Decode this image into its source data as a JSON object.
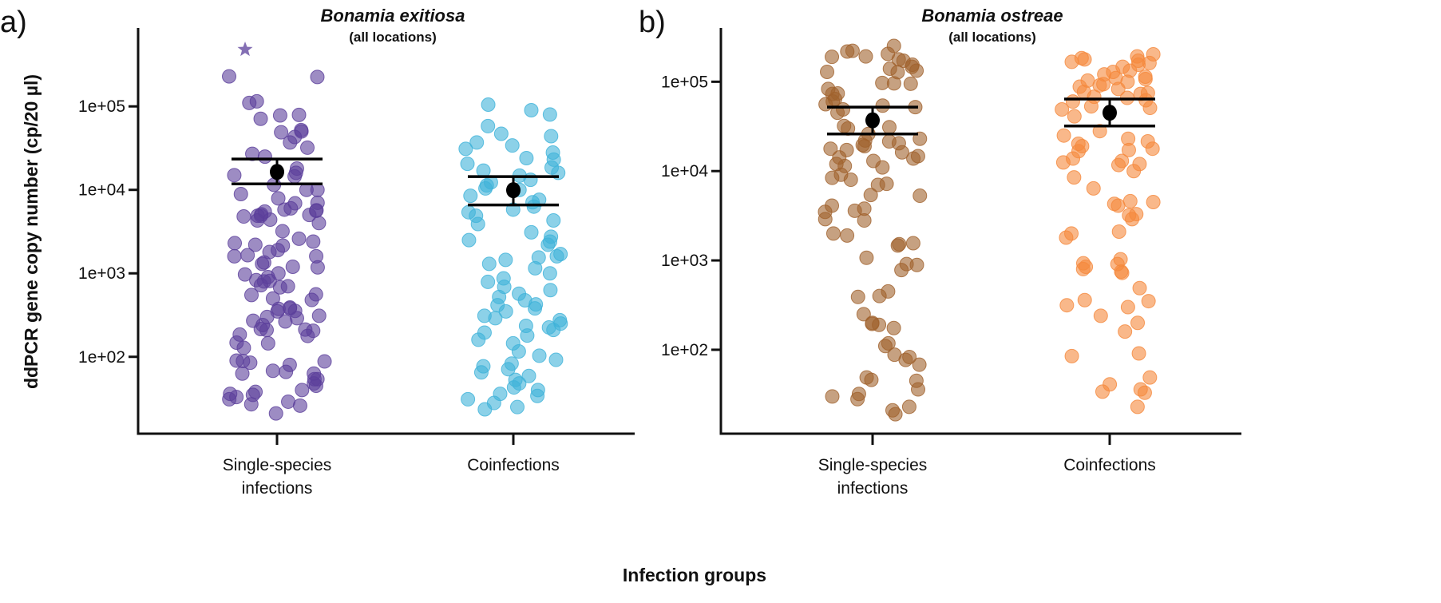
{
  "y_axis_label": "ddPCR gene copy number (cp/20 µl)",
  "x_axis_label": "Infection groups",
  "chart_data": [
    {
      "type": "scatter",
      "panel_label": "a)",
      "title": "Bonamia exitiosa",
      "subtitle": "(all locations)",
      "y_scale": "log",
      "ylim": [
        12,
        870000
      ],
      "y_ticks": [
        100,
        1000,
        10000,
        100000
      ],
      "y_tick_labels": [
        "1e+02",
        "1e+03",
        "1e+04",
        "1e+05"
      ],
      "categories": [
        "Single-species\ninfections",
        "Coinfections"
      ],
      "grid": false,
      "series": [
        {
          "category": "Single-species\ninfections",
          "color": "#5b3f9b",
          "values": [
            229000,
            225000,
            115000,
            110000,
            79000,
            78000,
            71000,
            52000,
            50000,
            49000,
            43000,
            37000,
            32000,
            27000,
            25000,
            18000,
            16000,
            15000,
            14500,
            11500,
            10000,
            10000,
            8900,
            7900,
            7000,
            6900,
            6000,
            5800,
            5700,
            5600,
            5500,
            5100,
            5000,
            4900,
            4800,
            4900,
            4400,
            4300,
            4000,
            3200,
            2600,
            2400,
            2300,
            2200,
            2150,
            1900,
            1800,
            1650,
            1600,
            1600,
            1350,
            1300,
            1200,
            1180,
            1000,
            970,
            900,
            830,
            800,
            810,
            720,
            680,
            700,
            550,
            560,
            500,
            480,
            390,
            380,
            375,
            350,
            355,
            310,
            300,
            290,
            270,
            265,
            240,
            215,
            210,
            212,
            205,
            185,
            178,
            148,
            145,
            128,
            90,
            88,
            85,
            80,
            89,
            68,
            66,
            63,
            54,
            63,
            54,
            48,
            45,
            40,
            38,
            36,
            35,
            33,
            31,
            29,
            27,
            26,
            21
          ],
          "outliers": [
            480000
          ],
          "mean": 16400,
          "ci": [
            11800,
            23400
          ]
        },
        {
          "category": "Coinfections",
          "color": "#3fb3d9",
          "values": [
            90000,
            105000,
            80000,
            58000,
            47000,
            44000,
            37000,
            34000,
            31000,
            28000,
            24000,
            23000,
            20500,
            18500,
            17000,
            16000,
            14800,
            13200,
            12300,
            11300,
            10400,
            10000,
            8500,
            7600,
            7100,
            6300,
            5800,
            5400,
            4900,
            4300,
            3900,
            3100,
            2750,
            2500,
            2400,
            2200,
            1700,
            1600,
            1550,
            1450,
            1300,
            1150,
            1000,
            870,
            790,
            690,
            630,
            570,
            520,
            475,
            425,
            415,
            380,
            350,
            310,
            290,
            275,
            250,
            235,
            225,
            210,
            195,
            180,
            160,
            145,
            116,
            103,
            92,
            83,
            77,
            71,
            65,
            59,
            53,
            48,
            43,
            40,
            36,
            34,
            31,
            28,
            25,
            23.5
          ],
          "mean": 9900,
          "ci": [
            6600,
            14400
          ]
        }
      ]
    },
    {
      "type": "scatter",
      "panel_label": "b)",
      "title": "Bonamia ostreae",
      "subtitle": "(all locations)",
      "y_scale": "log",
      "ylim": [
        11.5,
        400000
      ],
      "y_ticks": [
        100,
        1000,
        10000,
        100000
      ],
      "y_tick_labels": [
        "1e+02",
        "1e+03",
        "1e+04",
        "1e+05"
      ],
      "categories": [
        "Single-species\ninfections",
        "Coinfections"
      ],
      "grid": false,
      "series": [
        {
          "category": "Single-species\ninfections",
          "color": "#a0622d",
          "values": [
            252000,
            222000,
            218000,
            205000,
            192000,
            190000,
            178000,
            172000,
            155000,
            147000,
            140000,
            133000,
            129000,
            128000,
            97000,
            96000,
            95000,
            83000,
            74000,
            73000,
            64000,
            60000,
            56000,
            54000,
            52000,
            49000,
            45000,
            32000,
            31000,
            30000,
            26000,
            23000,
            22000,
            21500,
            20500,
            19600,
            19000,
            17800,
            17200,
            16200,
            14700,
            14200,
            13800,
            13000,
            12000,
            11400,
            11000,
            9100,
            8400,
            8000,
            7200,
            7000,
            5400,
            5300,
            4100,
            3800,
            3600,
            3500,
            2900,
            2800,
            2000,
            1900,
            1560,
            1520,
            1470,
            1070,
            910,
            890,
            780,
            450,
            400,
            390,
            250,
            200,
            195,
            190,
            175,
            118,
            110,
            88,
            83,
            77,
            68,
            49,
            46,
            45,
            36,
            32,
            30,
            28,
            23,
            21,
            19
          ],
          "mean": 37000,
          "ci": [
            26000,
            52000
          ]
        },
        {
          "category": "Coinfections",
          "color": "#f5883c",
          "values": [
            203000,
            192000,
            184000,
            178000,
            172000,
            167000,
            162000,
            155000,
            147000,
            133000,
            129000,
            121000,
            114000,
            110000,
            107000,
            103000,
            100000,
            94000,
            91000,
            88000,
            83000,
            77000,
            75000,
            73000,
            68000,
            66000,
            62000,
            60000,
            53000,
            51000,
            49000,
            41000,
            28000,
            25000,
            23000,
            21500,
            20200,
            19000,
            17800,
            17200,
            16700,
            13800,
            13000,
            12500,
            12000,
            11700,
            10000,
            8500,
            6400,
            4600,
            4500,
            4300,
            4100,
            3300,
            3200,
            2900,
            2100,
            2000,
            1800,
            1030,
            930,
            910,
            850,
            800,
            750,
            725,
            490,
            360,
            350,
            315,
            300,
            240,
            200,
            160,
            91,
            85,
            49,
            41,
            36,
            34,
            33,
            23
          ],
          "mean": 45000,
          "ci": [
            32000,
            64000
          ]
        }
      ]
    }
  ]
}
